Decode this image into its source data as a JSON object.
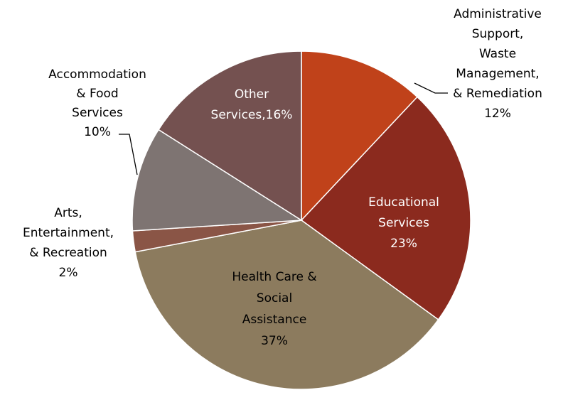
{
  "chart_data": {
    "type": "pie",
    "categories": [
      [
        "Administrative",
        "Support,",
        "Waste",
        "Management,",
        "& Remediation"
      ],
      [
        "Educational",
        "Services"
      ],
      [
        "Health Care &",
        "Social",
        "Assistance"
      ],
      [
        "Arts,",
        "Entertainment,",
        "& Recreation"
      ],
      [
        "Accommodation",
        "& Food",
        "Services"
      ],
      [
        "Other",
        "Services,"
      ]
    ],
    "values": [
      12,
      23,
      37,
      2,
      10,
      16
    ],
    "value_labels": [
      "12%",
      "23%",
      "37%",
      "2%",
      "10%",
      "16%"
    ],
    "colors": [
      "#c0421a",
      "#8b2a1e",
      "#8c7b5e",
      "#8a5546",
      "#7e7472",
      "#745150"
    ]
  }
}
